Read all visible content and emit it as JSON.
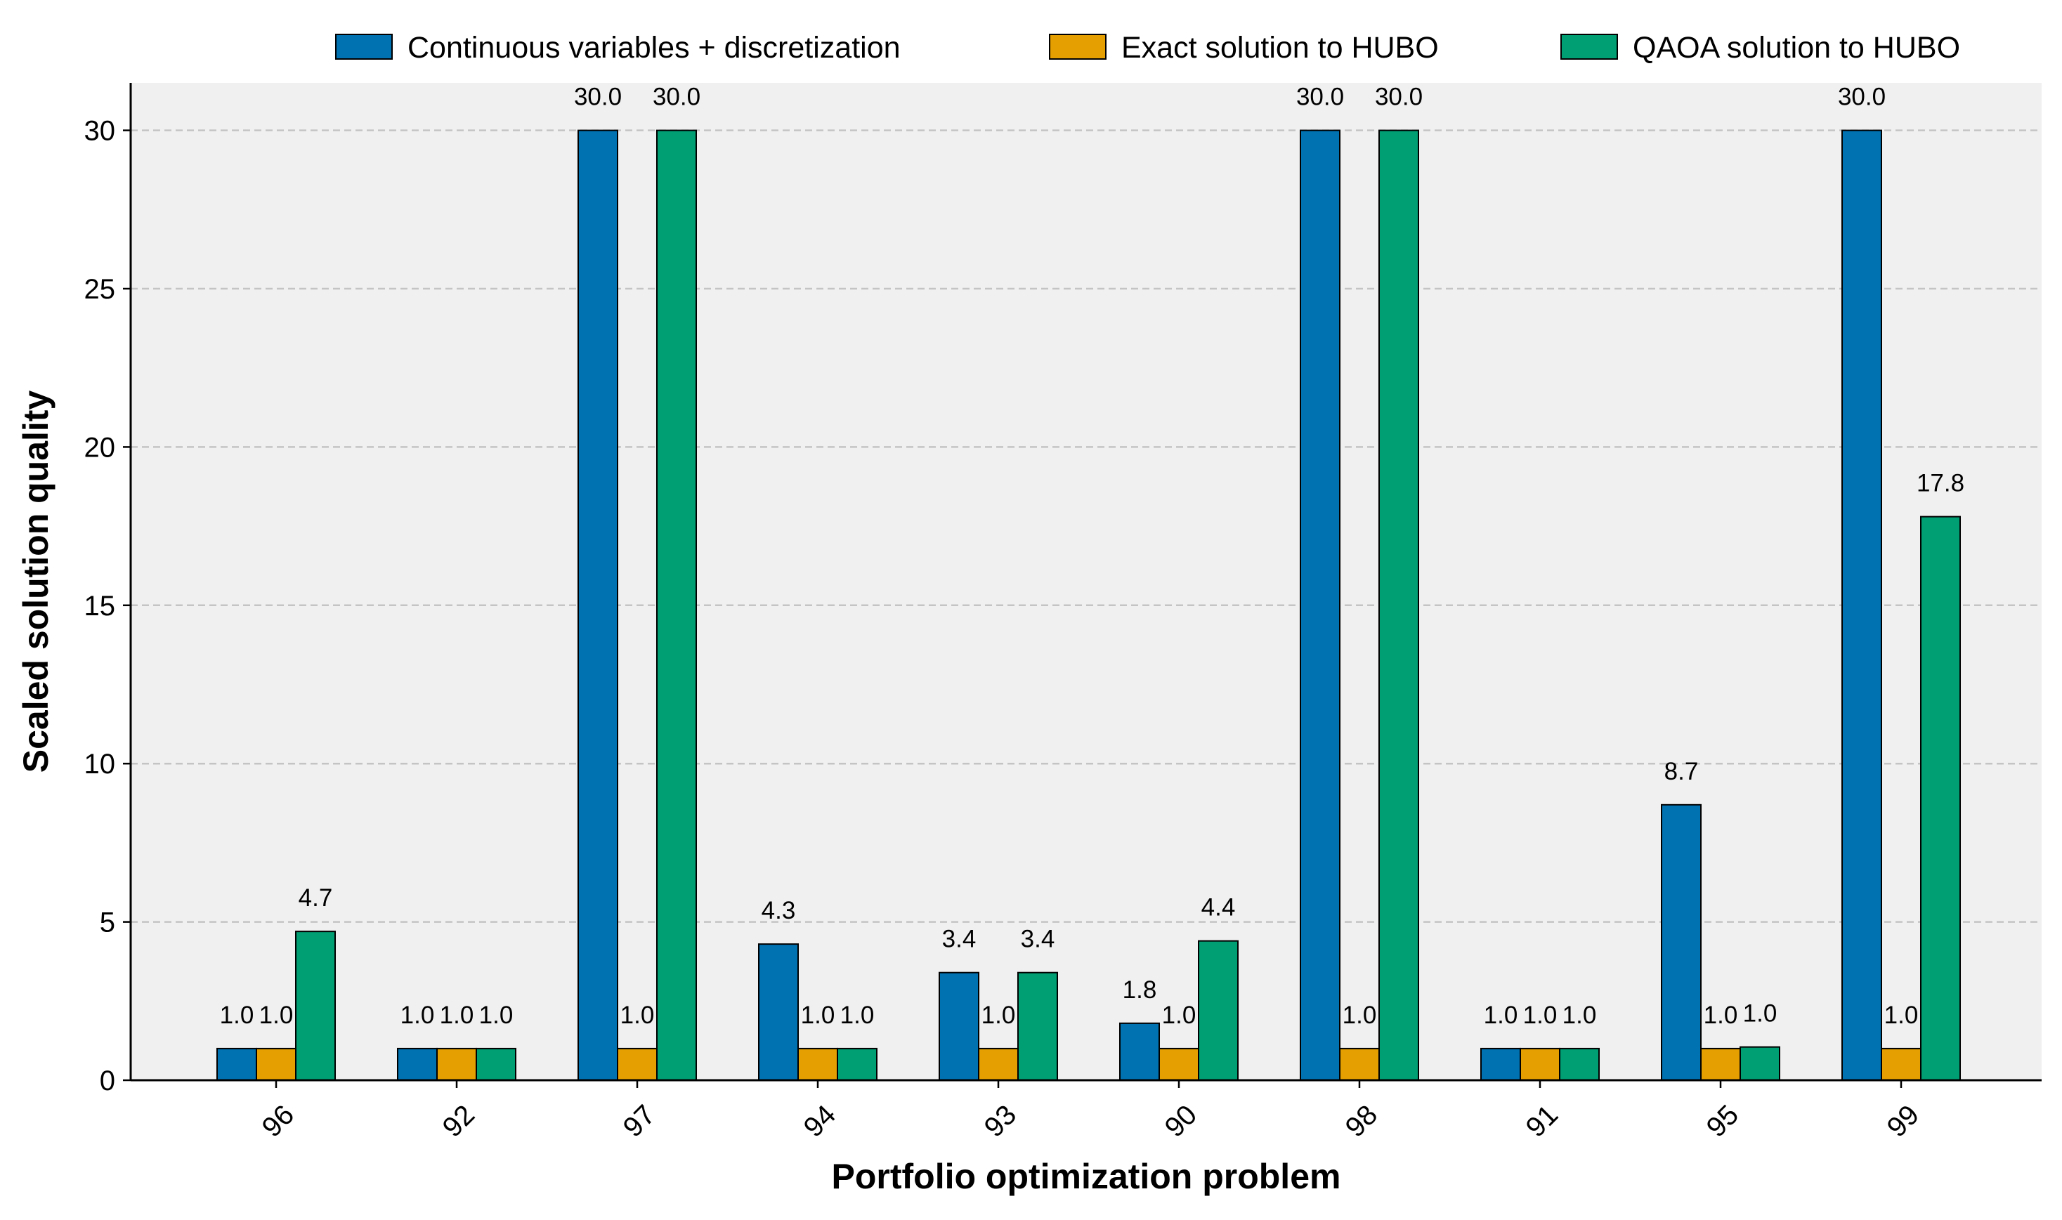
{
  "chart_data": {
    "type": "bar",
    "title": "",
    "xlabel": "Portfolio optimization problem",
    "ylabel": "Scaled solution quality",
    "categories": [
      "96",
      "92",
      "97",
      "94",
      "93",
      "90",
      "98",
      "91",
      "95",
      "99"
    ],
    "series": [
      {
        "name": "Continuous variables + discretization",
        "color": "#0072B2",
        "values": [
          1.0,
          1.0,
          30.0,
          4.3,
          3.4,
          1.8,
          30.0,
          1.0,
          8.7,
          30.0
        ],
        "labels": [
          "1.0",
          "1.0",
          "30.0",
          "4.3",
          "3.4",
          "1.8",
          "30.0",
          "1.0",
          "8.7",
          "30.0"
        ]
      },
      {
        "name": "Exact solution to HUBO",
        "color": "#E69F00",
        "values": [
          1.0,
          1.0,
          1.0,
          1.0,
          1.0,
          1.0,
          1.0,
          1.0,
          1.0,
          1.0
        ],
        "labels": [
          "1.0",
          "1.0",
          "1.0",
          "1.0",
          "1.0",
          "1.0",
          "1.0",
          "1.0",
          "1.0",
          "1.0"
        ]
      },
      {
        "name": "QAOA solution to HUBO",
        "color": "#009E73",
        "values": [
          4.7,
          1.0,
          30.0,
          1.0,
          3.4,
          4.4,
          30.0,
          1.0,
          1.05,
          17.8
        ],
        "labels": [
          "4.7",
          "1.0",
          "30.0",
          "1.0",
          "3.4",
          "4.4",
          "30.0",
          "1.0",
          "1.0",
          "17.8"
        ]
      }
    ],
    "ylim": [
      0,
      31.5
    ],
    "yticks": [
      "0",
      "5",
      "10",
      "15",
      "20",
      "25",
      "30"
    ],
    "grid": true,
    "legend_position": "top"
  }
}
